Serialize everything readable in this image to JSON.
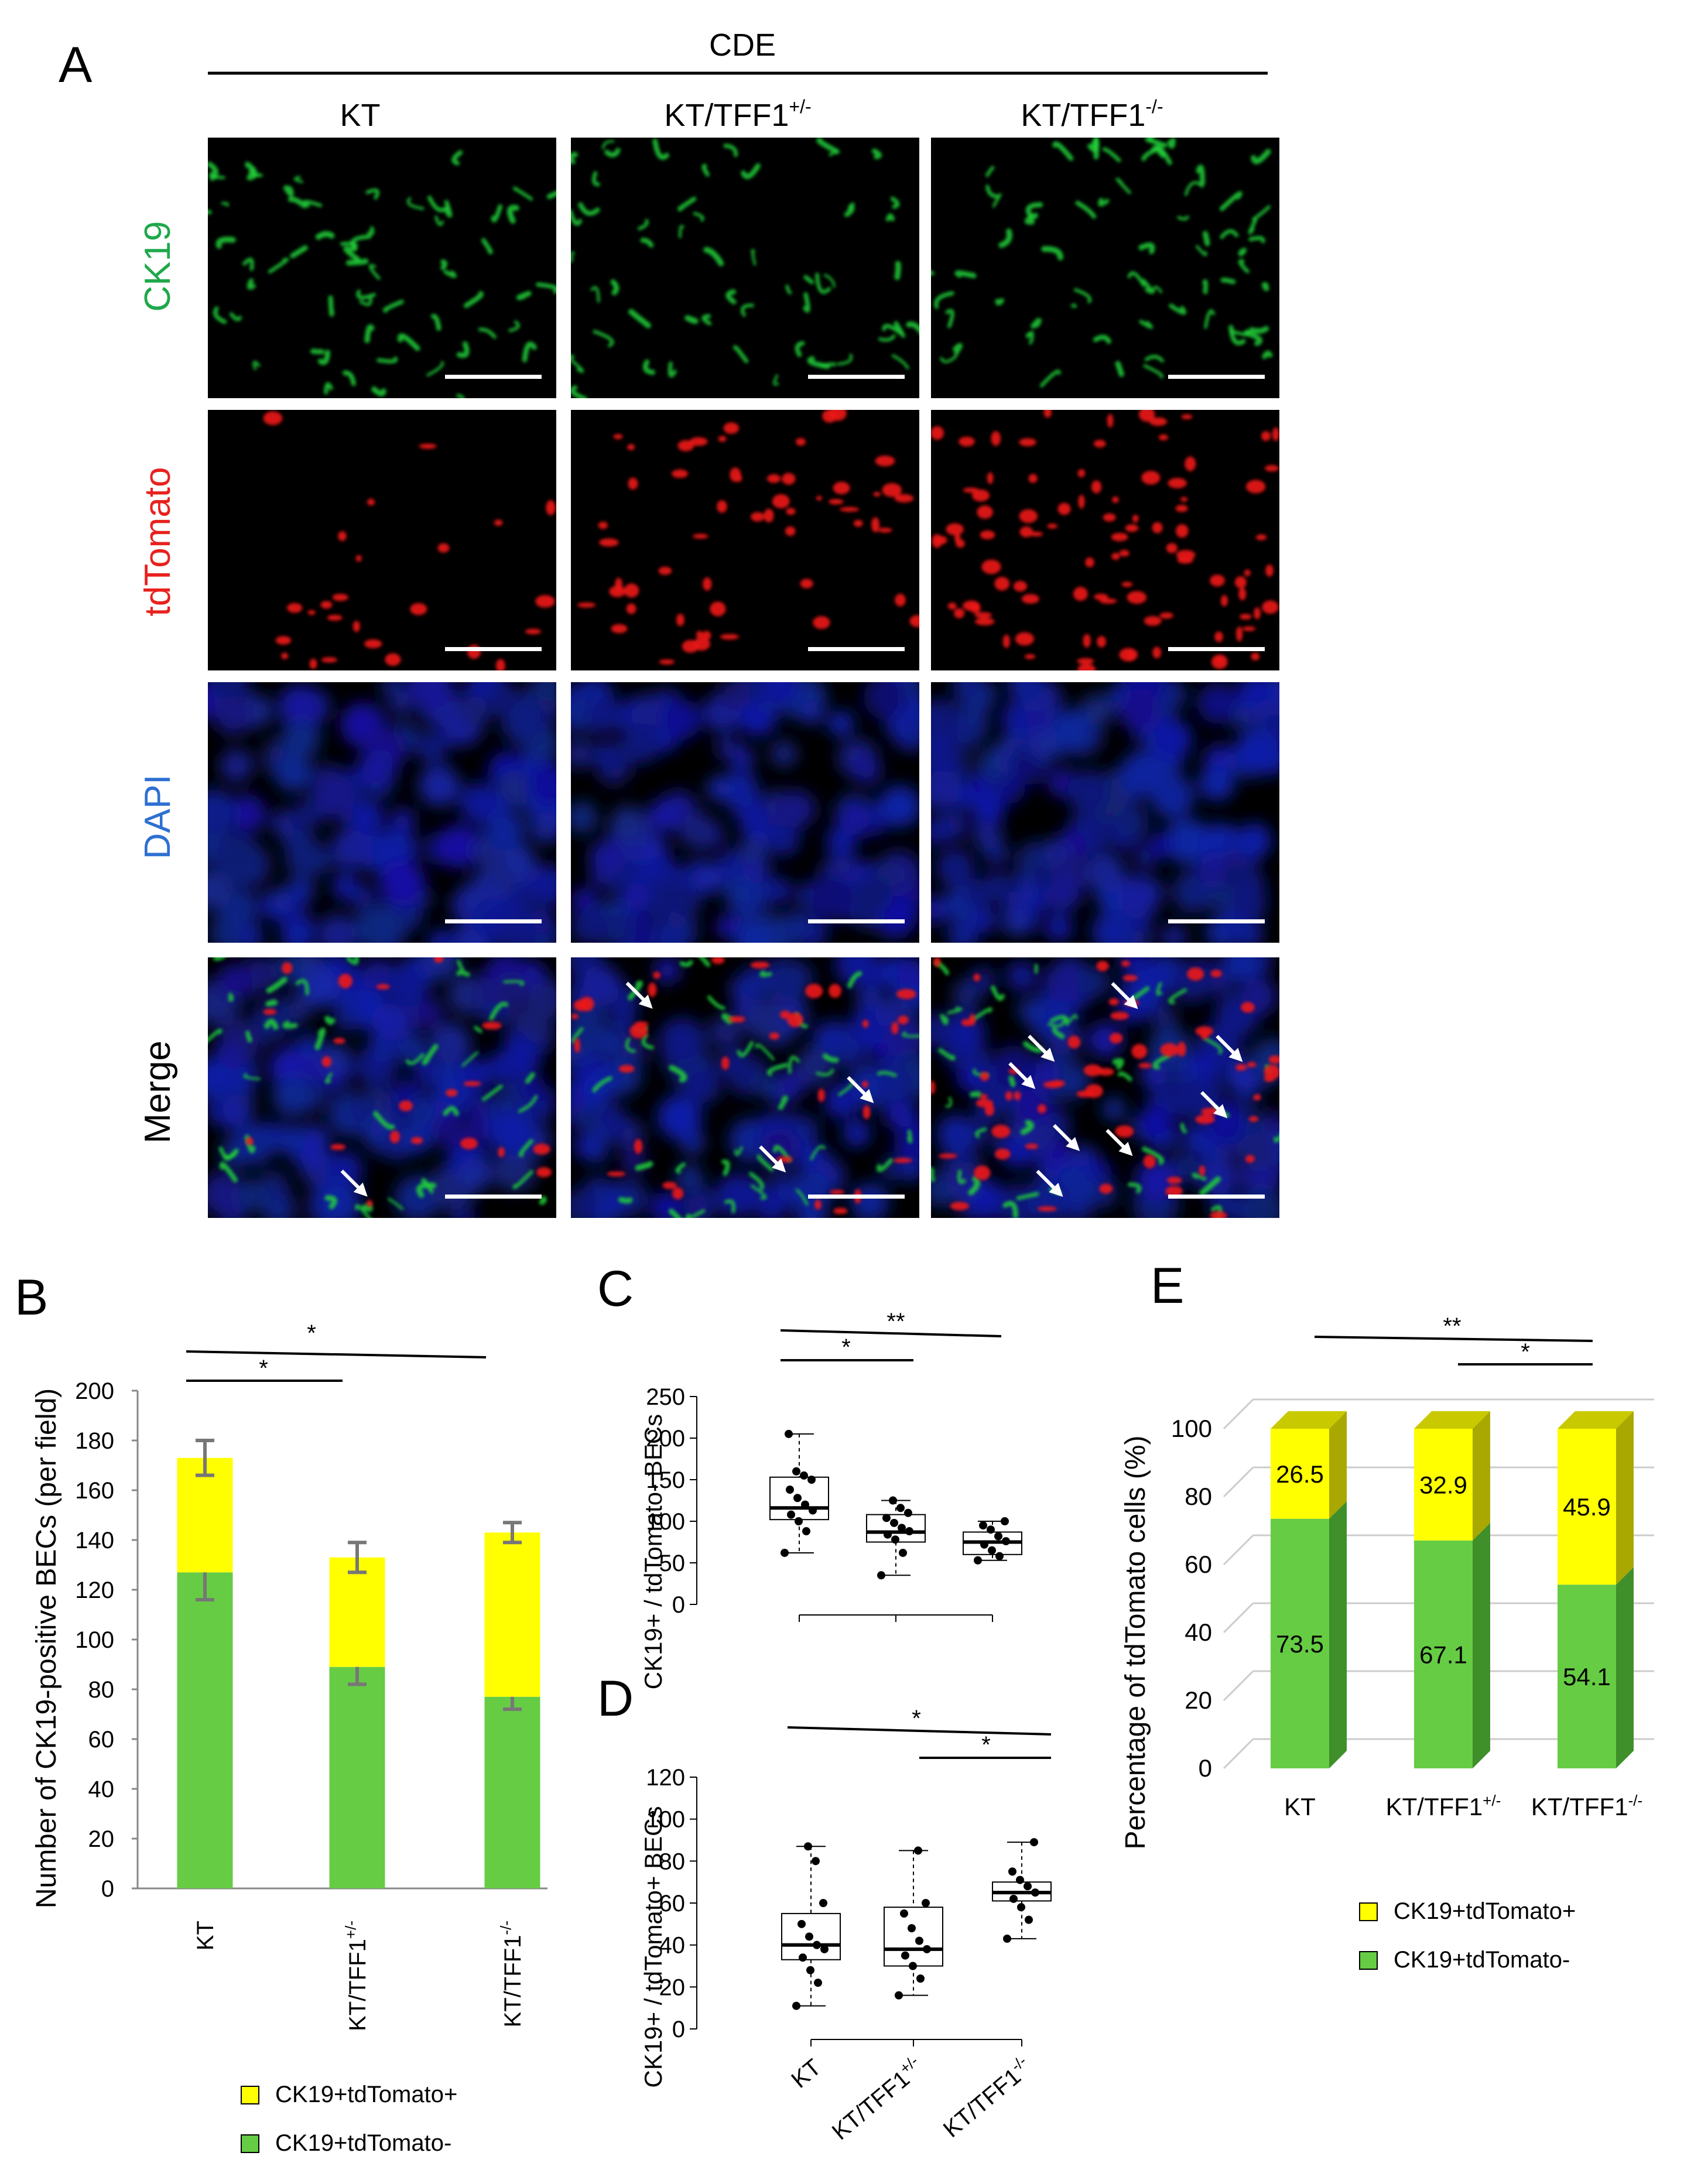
{
  "panel_a": {
    "letter": "A",
    "condition": "CDE",
    "columns": [
      {
        "base": "KT",
        "sup": ""
      },
      {
        "base": "KT/TFF1",
        "sup": "+/-"
      },
      {
        "base": "KT/TFF1",
        "sup": "-/-"
      }
    ],
    "rows": [
      {
        "label": "CK19",
        "color": "#1fa84a"
      },
      {
        "label": "tdTomato",
        "color": "#e8211d"
      },
      {
        "label": "DAPI",
        "color": "#2e6fd1"
      },
      {
        "label": "Merge",
        "color": "#000000"
      }
    ],
    "arrows_per_column": [
      1,
      3,
      8
    ]
  },
  "panel_b": {
    "letter": "B",
    "sig": [
      "*",
      "*"
    ],
    "legend": [
      {
        "label": "CK19+tdTomato+",
        "color": "#ffff00"
      },
      {
        "label": "CK19+tdTomato-",
        "color": "#66cc44"
      }
    ]
  },
  "panel_c": {
    "letter": "C",
    "sig": [
      "*",
      "**"
    ]
  },
  "panel_d": {
    "letter": "D",
    "sig": [
      "*",
      "*"
    ]
  },
  "panel_e": {
    "letter": "E",
    "sig": [
      "**",
      "*"
    ],
    "legend": [
      {
        "label": "CK19+tdTomato+",
        "color": "#ffff00"
      },
      {
        "label": "CK19+tdTomato-",
        "color": "#66cc44"
      }
    ]
  },
  "chart_data": [
    {
      "id": "B",
      "type": "bar",
      "stacked": true,
      "categories": [
        "KT",
        "KT/TFF1+/-",
        "KT/TFF1-/-"
      ],
      "ylabel": "Number of CK19-positive BECs (per field)",
      "ylim": [
        0,
        200
      ],
      "yticks": [
        0,
        20,
        40,
        60,
        80,
        100,
        120,
        140,
        160,
        180,
        200
      ],
      "series": [
        {
          "name": "CK19+tdTomato-",
          "color": "#66cc44",
          "values": [
            127,
            89,
            77
          ],
          "err": [
            11,
            7,
            5
          ]
        },
        {
          "name": "CK19+tdTomato+",
          "color": "#ffff00",
          "values": [
            46,
            44,
            66
          ],
          "err": [
            7,
            6,
            4
          ]
        }
      ]
    },
    {
      "id": "C",
      "type": "box",
      "categories": [
        "",
        "",
        ""
      ],
      "ylabel": "CK19+ / tdTomato- BECs",
      "ylim": [
        0,
        250
      ],
      "yticks": [
        0,
        50,
        100,
        150,
        200,
        250
      ],
      "boxes": [
        {
          "min": 62,
          "q1": 102,
          "median": 116,
          "q3": 153,
          "max": 205,
          "points": [
            62,
            88,
            100,
            108,
            113,
            120,
            128,
            138,
            150,
            155,
            160,
            205
          ]
        },
        {
          "min": 35,
          "q1": 75,
          "median": 87,
          "q3": 108,
          "max": 125,
          "points": [
            35,
            62,
            78,
            84,
            88,
            92,
            98,
            104,
            110,
            116,
            125
          ]
        },
        {
          "min": 53,
          "q1": 60,
          "median": 75,
          "q3": 87,
          "max": 100,
          "points": [
            53,
            58,
            65,
            72,
            76,
            82,
            90,
            95,
            100
          ]
        }
      ]
    },
    {
      "id": "D",
      "type": "box",
      "categories": [
        "KT",
        "KT/TFF1+/-",
        "KT/TFF1-/-"
      ],
      "ylabel": "CK19+ / tdTomato+ BECs",
      "ylim": [
        0,
        120
      ],
      "yticks": [
        0,
        20,
        40,
        60,
        80,
        100,
        120
      ],
      "boxes": [
        {
          "min": 11,
          "q1": 33,
          "median": 40,
          "q3": 55,
          "max": 87,
          "points": [
            11,
            22,
            28,
            34,
            38,
            40,
            44,
            50,
            60,
            80,
            87
          ]
        },
        {
          "min": 16,
          "q1": 30,
          "median": 38,
          "q3": 58,
          "max": 85,
          "points": [
            16,
            24,
            30,
            35,
            38,
            42,
            48,
            55,
            60,
            85
          ]
        },
        {
          "min": 43,
          "q1": 61,
          "median": 65,
          "q3": 70,
          "max": 89,
          "points": [
            43,
            52,
            58,
            62,
            65,
            68,
            71,
            75,
            89
          ]
        }
      ]
    },
    {
      "id": "E",
      "type": "bar",
      "stacked": true,
      "three_d": true,
      "categories": [
        "KT",
        "KT/TFF1+/-",
        "KT/TFF1-/-"
      ],
      "ylabel": "Percentage of tdTomato cells (%)",
      "ylim": [
        0,
        100
      ],
      "yticks": [
        0,
        20,
        40,
        60,
        80,
        100
      ],
      "series": [
        {
          "name": "CK19+tdTomato-",
          "color": "#66cc44",
          "values": [
            73.5,
            67.1,
            54.1
          ],
          "labels": [
            "73.5",
            "67.1",
            "54.1"
          ]
        },
        {
          "name": "CK19+tdTomato+",
          "color": "#ffff00",
          "values": [
            26.5,
            32.9,
            45.9
          ],
          "labels": [
            "26.5",
            "32.9",
            "45.9"
          ]
        }
      ]
    }
  ]
}
